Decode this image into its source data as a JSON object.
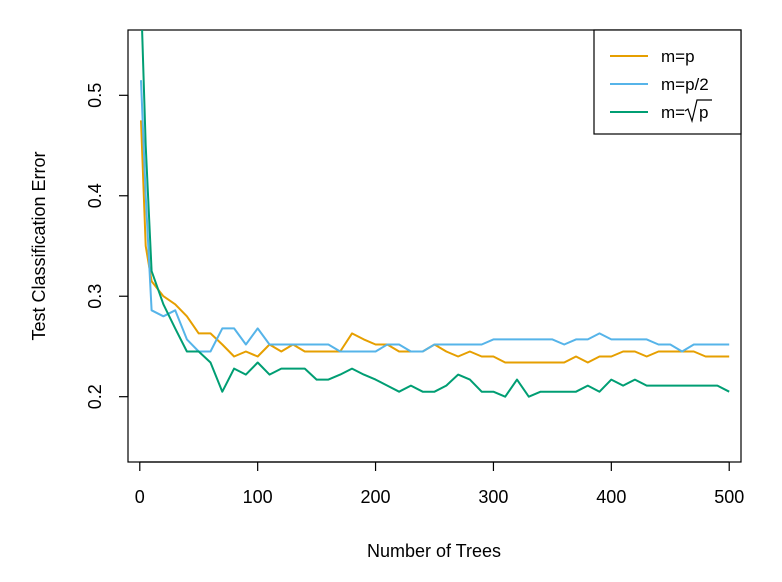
{
  "chart_data": {
    "type": "line",
    "title": "",
    "xlabel": "Number of Trees",
    "ylabel": "Test Classification Error",
    "xlim": [
      -10,
      510
    ],
    "ylim": [
      0.135,
      0.565
    ],
    "xticks": [
      0,
      100,
      200,
      300,
      400,
      500
    ],
    "xtick_labels": [
      "0",
      "100",
      "200",
      "300",
      "400",
      "500"
    ],
    "yticks": [
      0.2,
      0.3,
      0.4,
      0.5
    ],
    "ytick_labels": [
      "0.2",
      "0.3",
      "0.4",
      "0.5"
    ],
    "grid": false,
    "legend_position": "top-right",
    "x": [
      1,
      5,
      10,
      20,
      30,
      40,
      50,
      60,
      70,
      80,
      90,
      100,
      110,
      120,
      130,
      140,
      150,
      160,
      170,
      180,
      190,
      200,
      210,
      220,
      230,
      240,
      250,
      260,
      270,
      280,
      290,
      300,
      310,
      320,
      330,
      340,
      350,
      360,
      370,
      380,
      390,
      400,
      410,
      420,
      430,
      440,
      450,
      460,
      470,
      480,
      490,
      500
    ],
    "series": [
      {
        "name": "m=p",
        "label_text": "m=p",
        "color": "#E69F00",
        "values": [
          0.475,
          0.35,
          0.315,
          0.3,
          0.292,
          0.28,
          0.263,
          0.263,
          0.252,
          0.24,
          0.245,
          0.24,
          0.252,
          0.245,
          0.252,
          0.245,
          0.245,
          0.245,
          0.245,
          0.263,
          0.257,
          0.252,
          0.252,
          0.245,
          0.245,
          0.245,
          0.252,
          0.245,
          0.24,
          0.245,
          0.24,
          0.24,
          0.234,
          0.234,
          0.234,
          0.234,
          0.234,
          0.234,
          0.24,
          0.234,
          0.24,
          0.24,
          0.245,
          0.245,
          0.24,
          0.245,
          0.245,
          0.245,
          0.245,
          0.24,
          0.24,
          0.24
        ]
      },
      {
        "name": "m=p/2",
        "label_text": "m=p/2",
        "color": "#56B4E9",
        "values": [
          0.515,
          0.4,
          0.286,
          0.28,
          0.286,
          0.257,
          0.245,
          0.245,
          0.268,
          0.268,
          0.252,
          0.268,
          0.252,
          0.252,
          0.252,
          0.252,
          0.252,
          0.252,
          0.245,
          0.245,
          0.245,
          0.245,
          0.252,
          0.252,
          0.245,
          0.245,
          0.252,
          0.252,
          0.252,
          0.252,
          0.252,
          0.257,
          0.257,
          0.257,
          0.257,
          0.257,
          0.257,
          0.252,
          0.257,
          0.257,
          0.263,
          0.257,
          0.257,
          0.257,
          0.257,
          0.252,
          0.252,
          0.245,
          0.252,
          0.252,
          0.252,
          0.252
        ]
      },
      {
        "name": "m=√p",
        "label_prefix": "m=",
        "label_radicand": "p",
        "color": "#009E73",
        "values": [
          0.6,
          0.45,
          0.325,
          0.292,
          0.268,
          0.245,
          0.245,
          0.234,
          0.205,
          0.228,
          0.222,
          0.234,
          0.222,
          0.228,
          0.228,
          0.228,
          0.217,
          0.217,
          0.222,
          0.228,
          0.222,
          0.217,
          0.211,
          0.205,
          0.211,
          0.205,
          0.205,
          0.211,
          0.222,
          0.217,
          0.205,
          0.205,
          0.2,
          0.217,
          0.2,
          0.205,
          0.205,
          0.205,
          0.205,
          0.211,
          0.205,
          0.217,
          0.211,
          0.217,
          0.211,
          0.211,
          0.211,
          0.211,
          0.211,
          0.211,
          0.211,
          0.205
        ]
      }
    ]
  }
}
